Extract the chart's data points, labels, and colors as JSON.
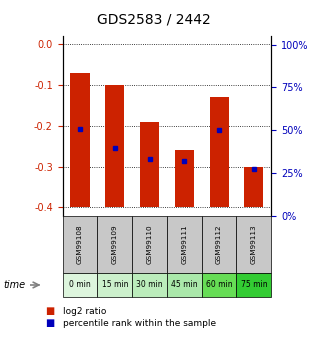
{
  "title": "GDS2583 / 2442",
  "samples": [
    "GSM99108",
    "GSM99109",
    "GSM99110",
    "GSM99111",
    "GSM99112",
    "GSM99113"
  ],
  "time_labels": [
    "0 min",
    "15 min",
    "30 min",
    "45 min",
    "60 min",
    "75 min"
  ],
  "bar_top": [
    -0.07,
    -0.1,
    -0.19,
    -0.26,
    -0.13,
    -0.3
  ],
  "bar_bottom": -0.4,
  "blue_marker_y": [
    -0.207,
    -0.253,
    -0.282,
    -0.285,
    -0.21,
    -0.305
  ],
  "ylim_left": [
    -0.42,
    0.02
  ],
  "ylim_right": [
    0,
    105
  ],
  "yticks_left": [
    0.0,
    -0.1,
    -0.2,
    -0.3,
    -0.4
  ],
  "yticks_right": [
    0,
    25,
    50,
    75,
    100
  ],
  "bar_color": "#cc2200",
  "blue_color": "#0000bb",
  "grid_color": "#000000",
  "bg_xlabels": "#c8c8c8",
  "bg_time_0": "#ddfadd",
  "bg_time_1": "#ccf5cc",
  "bg_time_2": "#bbefbb",
  "bg_time_3": "#aaea99",
  "bg_time_4": "#66dd66",
  "bg_time_5": "#44cc44",
  "title_fontsize": 10,
  "tick_fontsize": 7,
  "bar_width": 0.55,
  "time_colors": [
    "#ddf5dd",
    "#ccf0cc",
    "#bbecbb",
    "#aae8aa",
    "#66dd55",
    "#33cc33"
  ]
}
